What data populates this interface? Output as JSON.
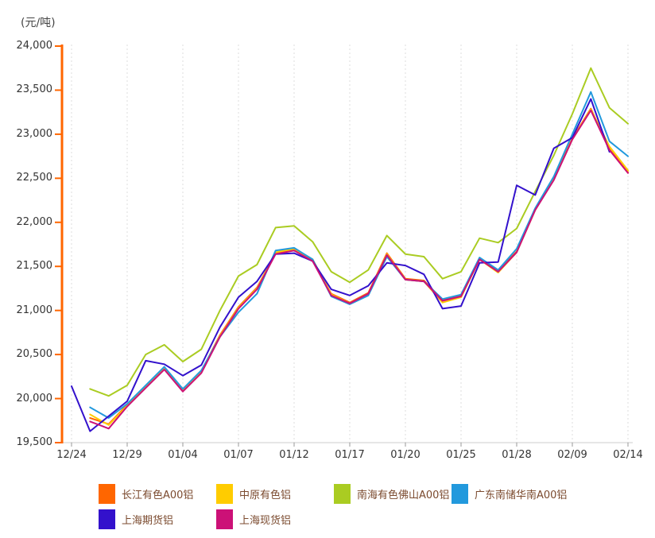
{
  "chart_data": {
    "type": "line",
    "title": "",
    "ylabel": "(元/吨)",
    "xlabel": "",
    "ylim": [
      19500,
      24000
    ],
    "y_tick_step": 500,
    "y_tick_labels": [
      "24,000",
      "23,500",
      "23,000",
      "22,500",
      "22,000",
      "21,500",
      "21,000",
      "20,500",
      "20,000",
      "19,500"
    ],
    "x_tick_labels": [
      "12/24",
      "12/29",
      "01/04",
      "01/07",
      "01/12",
      "01/17",
      "01/20",
      "01/25",
      "01/28",
      "02/09",
      "02/14"
    ],
    "x_labeled_indices": [
      0,
      3,
      6,
      9,
      12,
      15,
      18,
      21,
      24,
      27,
      30
    ],
    "points_count": 31,
    "grid": "vertical-dashed",
    "legend_position": "bottom",
    "axis_colors": {
      "y_axis": "#FF6600",
      "x_axis": "#CCCCCC",
      "x_tick": "#999999",
      "grid": "#DDDDDD",
      "tick_text": "#333333"
    },
    "series": [
      {
        "name": "长江有色A00铝",
        "color": "#FF6600",
        "values": [
          null,
          19780,
          19710,
          19930,
          20140,
          20350,
          20100,
          20310,
          20720,
          21040,
          21260,
          21650,
          21690,
          21570,
          21190,
          21090,
          21200,
          21650,
          21360,
          21340,
          21120,
          21170,
          21590,
          21450,
          21670,
          22150,
          22500,
          22950,
          23290,
          22830,
          22570
        ]
      },
      {
        "name": "中原有色铝",
        "color": "#FFCC00",
        "values": [
          null,
          19820,
          19700,
          19920,
          20130,
          20340,
          20090,
          20300,
          20710,
          21030,
          21250,
          21660,
          21700,
          21580,
          21180,
          21080,
          21190,
          21640,
          21350,
          21330,
          21090,
          21150,
          21580,
          21430,
          21660,
          22140,
          22490,
          22940,
          23280,
          22860,
          22590
        ]
      },
      {
        "name": "南海有色佛山A00铝",
        "color": "#AACC22",
        "values": [
          null,
          20110,
          20030,
          20150,
          20500,
          20610,
          20420,
          20560,
          21000,
          21390,
          21520,
          21940,
          21960,
          21780,
          21440,
          21320,
          21460,
          21850,
          21640,
          21610,
          21360,
          21440,
          21820,
          21770,
          21930,
          22350,
          22760,
          23230,
          23750,
          23300,
          23120
        ]
      },
      {
        "name": "广东南储华南A00铝",
        "color": "#2299DD",
        "values": [
          null,
          19900,
          19780,
          19940,
          20150,
          20360,
          20110,
          20320,
          20700,
          20980,
          21190,
          21680,
          21710,
          21580,
          21160,
          21070,
          21170,
          21610,
          21350,
          21330,
          21130,
          21180,
          21600,
          21460,
          21700,
          22160,
          22520,
          23000,
          23480,
          22920,
          22750
        ]
      },
      {
        "name": "上海期货铝",
        "color": "#3311CC",
        "values": [
          20140,
          19630,
          19800,
          19970,
          20430,
          20390,
          20260,
          20380,
          20810,
          21150,
          21330,
          21640,
          21650,
          21560,
          21240,
          21170,
          21280,
          21540,
          21510,
          21410,
          21020,
          21050,
          21540,
          21550,
          22420,
          22310,
          22840,
          22960,
          23400,
          22800,
          null
        ]
      },
      {
        "name": "上海现货铝",
        "color": "#CC1177",
        "values": [
          null,
          19740,
          19660,
          19910,
          20120,
          20330,
          20080,
          20290,
          20700,
          21020,
          21240,
          21640,
          21680,
          21560,
          21170,
          21080,
          21190,
          21630,
          21350,
          21330,
          21110,
          21160,
          21580,
          21440,
          21660,
          22140,
          22480,
          22940,
          23270,
          22820,
          22560
        ]
      }
    ],
    "legend_text_color": "#7B4A2E"
  }
}
